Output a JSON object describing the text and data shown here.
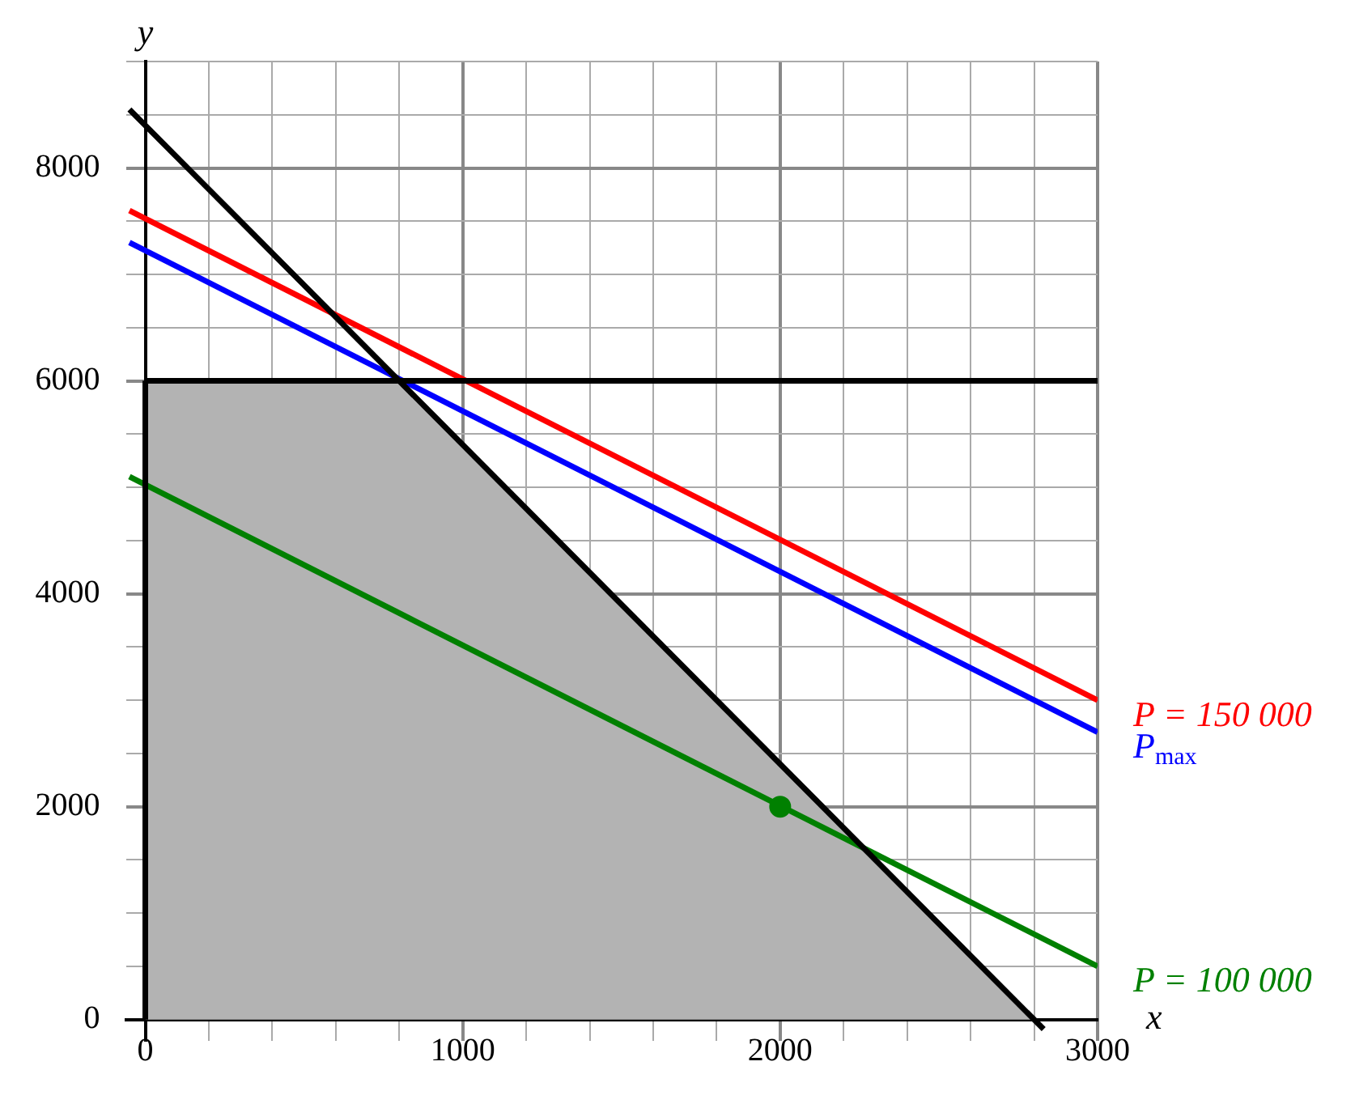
{
  "chart_data": {
    "type": "line",
    "xlabel": "x",
    "ylabel": "y",
    "xlim": [
      -60,
      3000
    ],
    "ylim": [
      -200,
      9000
    ],
    "xticks": [
      0,
      {
        "value": 200,
        "label": null
      },
      {
        "value": 400,
        "label": null
      },
      {
        "value": 600,
        "label": null
      },
      {
        "value": 800,
        "label": null
      },
      1000,
      {
        "value": 1200,
        "label": null
      },
      {
        "value": 1400,
        "label": null
      },
      {
        "value": 1600,
        "label": null
      },
      {
        "value": 1800,
        "label": null
      },
      2000,
      {
        "value": 2200,
        "label": null
      },
      {
        "value": 2400,
        "label": null
      },
      {
        "value": 2600,
        "label": null
      },
      {
        "value": 2800,
        "label": null
      },
      3000
    ],
    "yticks": [
      0,
      {
        "value": 500,
        "label": null
      },
      {
        "value": 1000,
        "label": null
      },
      {
        "value": 1500,
        "label": null
      },
      2000,
      {
        "value": 2500,
        "label": null
      },
      {
        "value": 3000,
        "label": null
      },
      {
        "value": 3500,
        "label": null
      },
      4000,
      {
        "value": 4500,
        "label": null
      },
      {
        "value": 5000,
        "label": null
      },
      {
        "value": 5500,
        "label": null
      },
      6000,
      {
        "value": 6500,
        "label": null
      },
      {
        "value": 7000,
        "label": null
      },
      {
        "value": 7500,
        "label": null
      },
      8000,
      {
        "value": 8500,
        "label": null
      },
      {
        "value": 9000,
        "label": null
      }
    ],
    "grid": true,
    "marker": "none",
    "series": [
      {
        "type": "area",
        "color": "#b3b3b3",
        "x": [
          0,
          0,
          800,
          2800
        ],
        "values": [
          0,
          6000,
          6000,
          0
        ]
      },
      {
        "color": "#000000",
        "x": [
          -50,
          2830
        ],
        "values": [
          8550,
          -90
        ]
      },
      {
        "color": "#000000",
        "x": [
          0,
          3000
        ],
        "values": [
          6000,
          6000
        ]
      },
      {
        "color": "#000000",
        "x": [
          0,
          0
        ],
        "values": [
          0,
          6000
        ]
      },
      {
        "name": "P = 150 000",
        "color": "#ff0000",
        "x": [
          -50,
          3000
        ],
        "values": [
          7600,
          3000
        ]
      },
      {
        "name": "P$_{max}$",
        "color": "#0000ff",
        "x": [
          -50,
          3000
        ],
        "values": [
          7300,
          2700
        ]
      },
      {
        "name": "P = 100 000",
        "color": "#008000",
        "x": [
          -50,
          3000
        ],
        "values": [
          5100,
          500
        ]
      },
      {
        "type": "scatter",
        "marker": "circle",
        "color": "#008000",
        "x": [
          2000
        ],
        "values": [
          2000
        ]
      }
    ]
  }
}
